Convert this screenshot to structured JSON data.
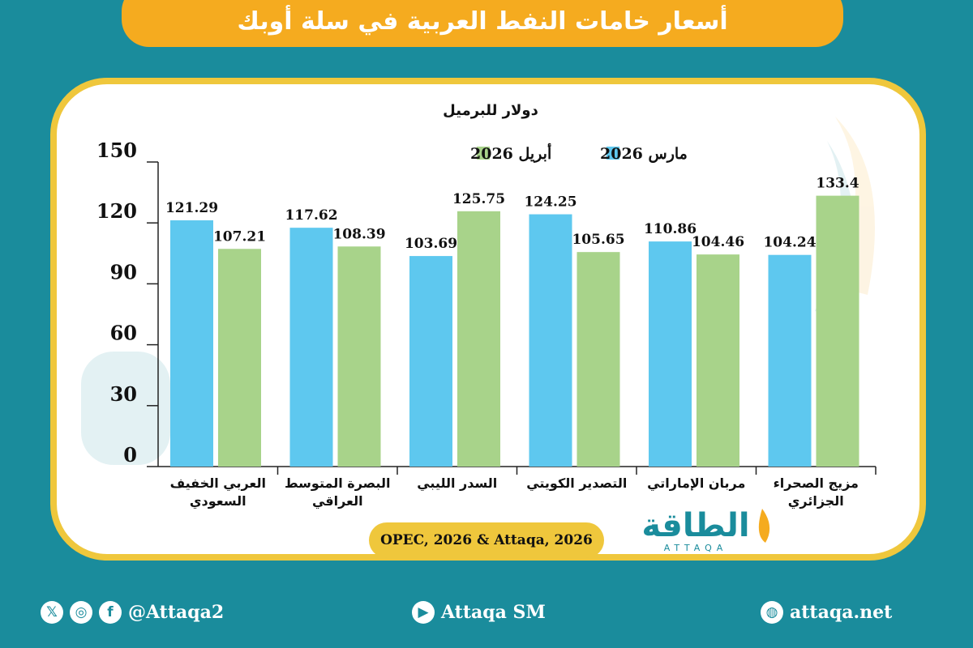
{
  "title": "أسعار خامات النفط العربية في سلة أوبك",
  "source": "OPEC, 2026 & Attaqa, 2026",
  "logo": {
    "arabic": "الطاقة",
    "latin": "ATTAQA"
  },
  "footer": {
    "social_handle": "@Attaqa2",
    "youtube": "Attaqa SM",
    "website": "attaqa.net",
    "icons": [
      "x-icon",
      "instagram-icon",
      "facebook-icon",
      "youtube-icon",
      "globe-icon"
    ]
  },
  "colors": {
    "march": "#5ec8ef",
    "april": "#a8d38a",
    "accent": "#f5ab1f",
    "background": "#1a8c9c",
    "frame": "#efc73c"
  },
  "chart_data": {
    "type": "bar",
    "ylabel": "دولار للبرميل",
    "ylim": [
      0,
      150
    ],
    "yticks": [
      "0",
      "30",
      "60",
      "90",
      "120",
      "150"
    ],
    "legend_position": "top",
    "categories": [
      [
        "العربي الخفيف",
        "السعودي"
      ],
      [
        "البصرة المتوسط",
        "العراقي"
      ],
      [
        "السدر الليبي"
      ],
      [
        "التصدير الكويتي"
      ],
      [
        "مربان الإماراتي"
      ],
      [
        "مزيج الصحراء",
        "الجزائري"
      ]
    ],
    "series": [
      {
        "name": "مارس 2026",
        "values": [
          121.29,
          117.62,
          103.69,
          124.25,
          110.86,
          104.24
        ],
        "labels": [
          "121.29",
          "117.62",
          "103.69",
          "124.25",
          "110.86",
          "104.24"
        ]
      },
      {
        "name": "أبريل 2026",
        "values": [
          107.21,
          108.39,
          125.75,
          105.65,
          104.46,
          133.4
        ],
        "labels": [
          "107.21",
          "108.39",
          "125.75",
          "105.65",
          "104.46",
          "133.4"
        ]
      }
    ]
  }
}
